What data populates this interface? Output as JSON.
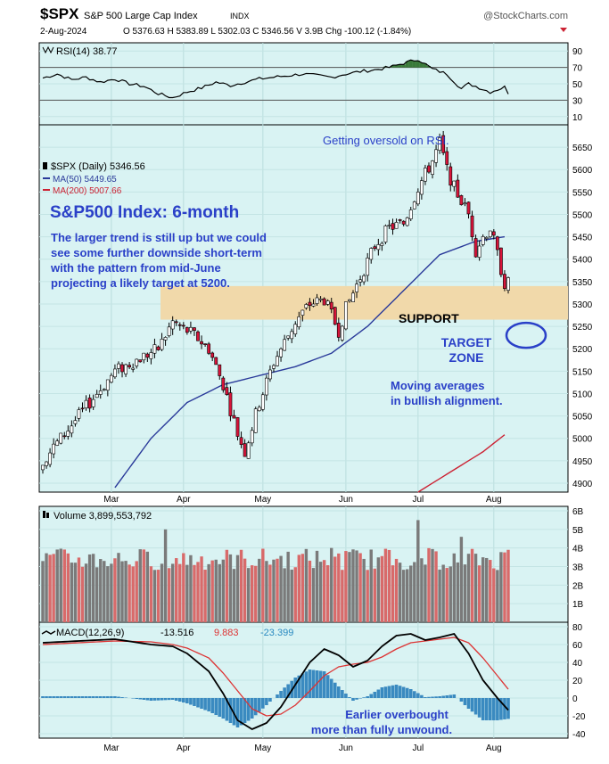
{
  "header": {
    "symbol": "$SPX",
    "name": "S&P 500 Large Cap Index",
    "exchange": "INDX",
    "source": "@StockCharts.com",
    "date": "2-Aug-2024",
    "quote_line": "O 5376.63  H 5383.89  L 5302.03  C 5346.56  V 3.9B  Chg -100.12 (-1.84%)"
  },
  "colors": {
    "panel_bg": "#d9f3f3",
    "up_candle": "#ffffff",
    "down_candle": "#d8143a",
    "ma50": "#2a3a9a",
    "ma200": "#cc2233",
    "support_band": "#f1d9aa",
    "annotation_blue": "#2a40c8",
    "rsi_fill": "#3a7a3a",
    "volume_down": "#d86a6a",
    "volume_up": "#7a7a7a",
    "macd_line": "#000000",
    "signal_line": "#dd3333",
    "histogram": "#3a8ac0"
  },
  "annotations": {
    "rsi_note": "Getting oversold on RSI.",
    "title": "S&P500 Index: 6-month",
    "body_lines": [
      "The larger trend is still up but we could",
      "see some further downside short-term",
      "with the pattern from mid-June",
      "projecting a likely target at 5200."
    ],
    "support": "SUPPORT",
    "target_line1": "TARGET",
    "target_line2": "ZONE",
    "ma_line1": "Moving  averages",
    "ma_line2": "in bullish alignment.",
    "macd_line1": "Earlier overbought",
    "macd_line2": "more than fully unwound."
  },
  "chart_data": [
    {
      "type": "line",
      "name": "rsi_panel",
      "legend": "RSI(14) 38.77",
      "ylim": [
        0,
        100
      ],
      "y_ticks": [
        90,
        70,
        50,
        30,
        10
      ],
      "reference_lines": [
        70,
        30
      ],
      "series": [
        {
          "x": [
            0,
            4,
            8,
            12,
            16,
            20,
            24,
            28,
            32,
            36,
            40,
            44,
            48,
            52,
            56,
            60,
            64,
            68,
            72,
            76,
            80,
            84,
            88,
            92,
            96,
            100,
            104,
            108,
            112,
            116,
            118,
            120,
            124,
            128,
            129
          ],
          "values": [
            57,
            62,
            55,
            58,
            52,
            56,
            50,
            47,
            38,
            33,
            40,
            45,
            52,
            48,
            52,
            56,
            58,
            60,
            62,
            60,
            58,
            62,
            65,
            67,
            70,
            75,
            80,
            68,
            62,
            44,
            50,
            47,
            40,
            46,
            39
          ]
        }
      ]
    },
    {
      "type": "candlestick",
      "name": "price_panel",
      "legend": [
        "$SPX (Daily) 5346.56",
        "MA(50) 5449.65",
        "MA(200) 5007.66"
      ],
      "ylim": [
        4880,
        5700
      ],
      "y_ticks": [
        4900,
        4950,
        5000,
        5050,
        5100,
        5150,
        5200,
        5250,
        5300,
        5350,
        5400,
        5450,
        5500,
        5550,
        5600,
        5650
      ],
      "x_tick_labels": [
        {
          "i": 19,
          "label": "Mar"
        },
        {
          "i": 39,
          "label": "Apr"
        },
        {
          "i": 61,
          "label": "May"
        },
        {
          "i": 84,
          "label": "Jun"
        },
        {
          "i": 104,
          "label": "Jul"
        },
        {
          "i": 125,
          "label": "Aug"
        }
      ],
      "support_zone": [
        5265,
        5340
      ],
      "target_value": 5230,
      "key_points": [
        {
          "i": 0,
          "close": 4950
        },
        {
          "i": 10,
          "close": 5050
        },
        {
          "i": 20,
          "close": 5150
        },
        {
          "i": 32,
          "close": 5200
        },
        {
          "i": 36,
          "close": 5260
        },
        {
          "i": 42,
          "close": 5230
        },
        {
          "i": 46,
          "close": 5200
        },
        {
          "i": 50,
          "close": 5120
        },
        {
          "i": 54,
          "close": 5010
        },
        {
          "i": 56,
          "close": 4970
        },
        {
          "i": 60,
          "close": 5080
        },
        {
          "i": 64,
          "close": 5170
        },
        {
          "i": 70,
          "close": 5260
        },
        {
          "i": 74,
          "close": 5300
        },
        {
          "i": 78,
          "close": 5310
        },
        {
          "i": 82,
          "close": 5240
        },
        {
          "i": 84,
          "close": 5290
        },
        {
          "i": 88,
          "close": 5360
        },
        {
          "i": 92,
          "close": 5430
        },
        {
          "i": 96,
          "close": 5470
        },
        {
          "i": 100,
          "close": 5480
        },
        {
          "i": 104,
          "close": 5560
        },
        {
          "i": 108,
          "close": 5620
        },
        {
          "i": 110,
          "close": 5660
        },
        {
          "i": 112,
          "close": 5600
        },
        {
          "i": 114,
          "close": 5560
        },
        {
          "i": 118,
          "close": 5500
        },
        {
          "i": 120,
          "close": 5420
        },
        {
          "i": 122,
          "close": 5450
        },
        {
          "i": 124,
          "close": 5470
        },
        {
          "i": 126,
          "close": 5410
        },
        {
          "i": 128,
          "close": 5346
        }
      ],
      "ma50": {
        "x": [
          20,
          30,
          40,
          50,
          60,
          70,
          80,
          90,
          100,
          110,
          120,
          128
        ],
        "values": [
          4890,
          5000,
          5080,
          5120,
          5140,
          5160,
          5190,
          5250,
          5330,
          5410,
          5440,
          5450
        ]
      },
      "ma200": {
        "x": [
          104,
          110,
          116,
          122,
          128
        ],
        "values": [
          4880,
          4910,
          4940,
          4970,
          5008
        ]
      }
    },
    {
      "type": "bar",
      "name": "volume_panel",
      "legend": "Volume 3,899,553,792",
      "ylim": [
        0,
        6
      ],
      "unit": "B",
      "y_ticks": [
        "1B",
        "2B",
        "3B",
        "4B",
        "5B",
        "6B"
      ],
      "spikes": [
        {
          "i": 34,
          "value": 5.0
        },
        {
          "i": 80,
          "value": 4.0
        },
        {
          "i": 104,
          "value": 5.5
        },
        {
          "i": 116,
          "value": 4.6
        },
        {
          "i": 129,
          "value": 3.9
        }
      ],
      "typical_range": [
        2.8,
        4.0
      ]
    },
    {
      "type": "line",
      "name": "macd_panel",
      "legend": [
        "MACD(12,26,9)",
        "-13.516",
        "9.883",
        "-23.399"
      ],
      "ylim": [
        -45,
        85
      ],
      "y_ticks": [
        80,
        60,
        40,
        20,
        0,
        -20,
        -40
      ],
      "x_tick_labels": [
        {
          "i": 19,
          "label": "Mar"
        },
        {
          "i": 39,
          "label": "Apr"
        },
        {
          "i": 61,
          "label": "May"
        },
        {
          "i": 84,
          "label": "Jun"
        },
        {
          "i": 104,
          "label": "Jul"
        },
        {
          "i": 125,
          "label": "Aug"
        }
      ],
      "series": [
        {
          "name": "MACD",
          "x": [
            0,
            10,
            20,
            30,
            36,
            40,
            46,
            50,
            54,
            58,
            62,
            66,
            70,
            74,
            78,
            82,
            86,
            90,
            94,
            98,
            102,
            106,
            110,
            114,
            118,
            122,
            126,
            129
          ],
          "values": [
            62,
            64,
            66,
            60,
            58,
            50,
            30,
            5,
            -25,
            -35,
            -28,
            -10,
            15,
            40,
            55,
            48,
            35,
            42,
            58,
            70,
            72,
            65,
            68,
            72,
            50,
            20,
            0,
            -13.5
          ]
        },
        {
          "name": "Signal",
          "x": [
            0,
            10,
            20,
            30,
            36,
            40,
            46,
            50,
            54,
            58,
            62,
            66,
            70,
            74,
            78,
            82,
            86,
            90,
            94,
            98,
            102,
            106,
            110,
            114,
            118,
            122,
            126,
            129
          ],
          "values": [
            60,
            62,
            64,
            63,
            60,
            56,
            45,
            28,
            8,
            -12,
            -20,
            -18,
            -8,
            8,
            25,
            35,
            38,
            40,
            46,
            55,
            62,
            64,
            66,
            68,
            62,
            45,
            25,
            9.9
          ]
        }
      ]
    }
  ]
}
